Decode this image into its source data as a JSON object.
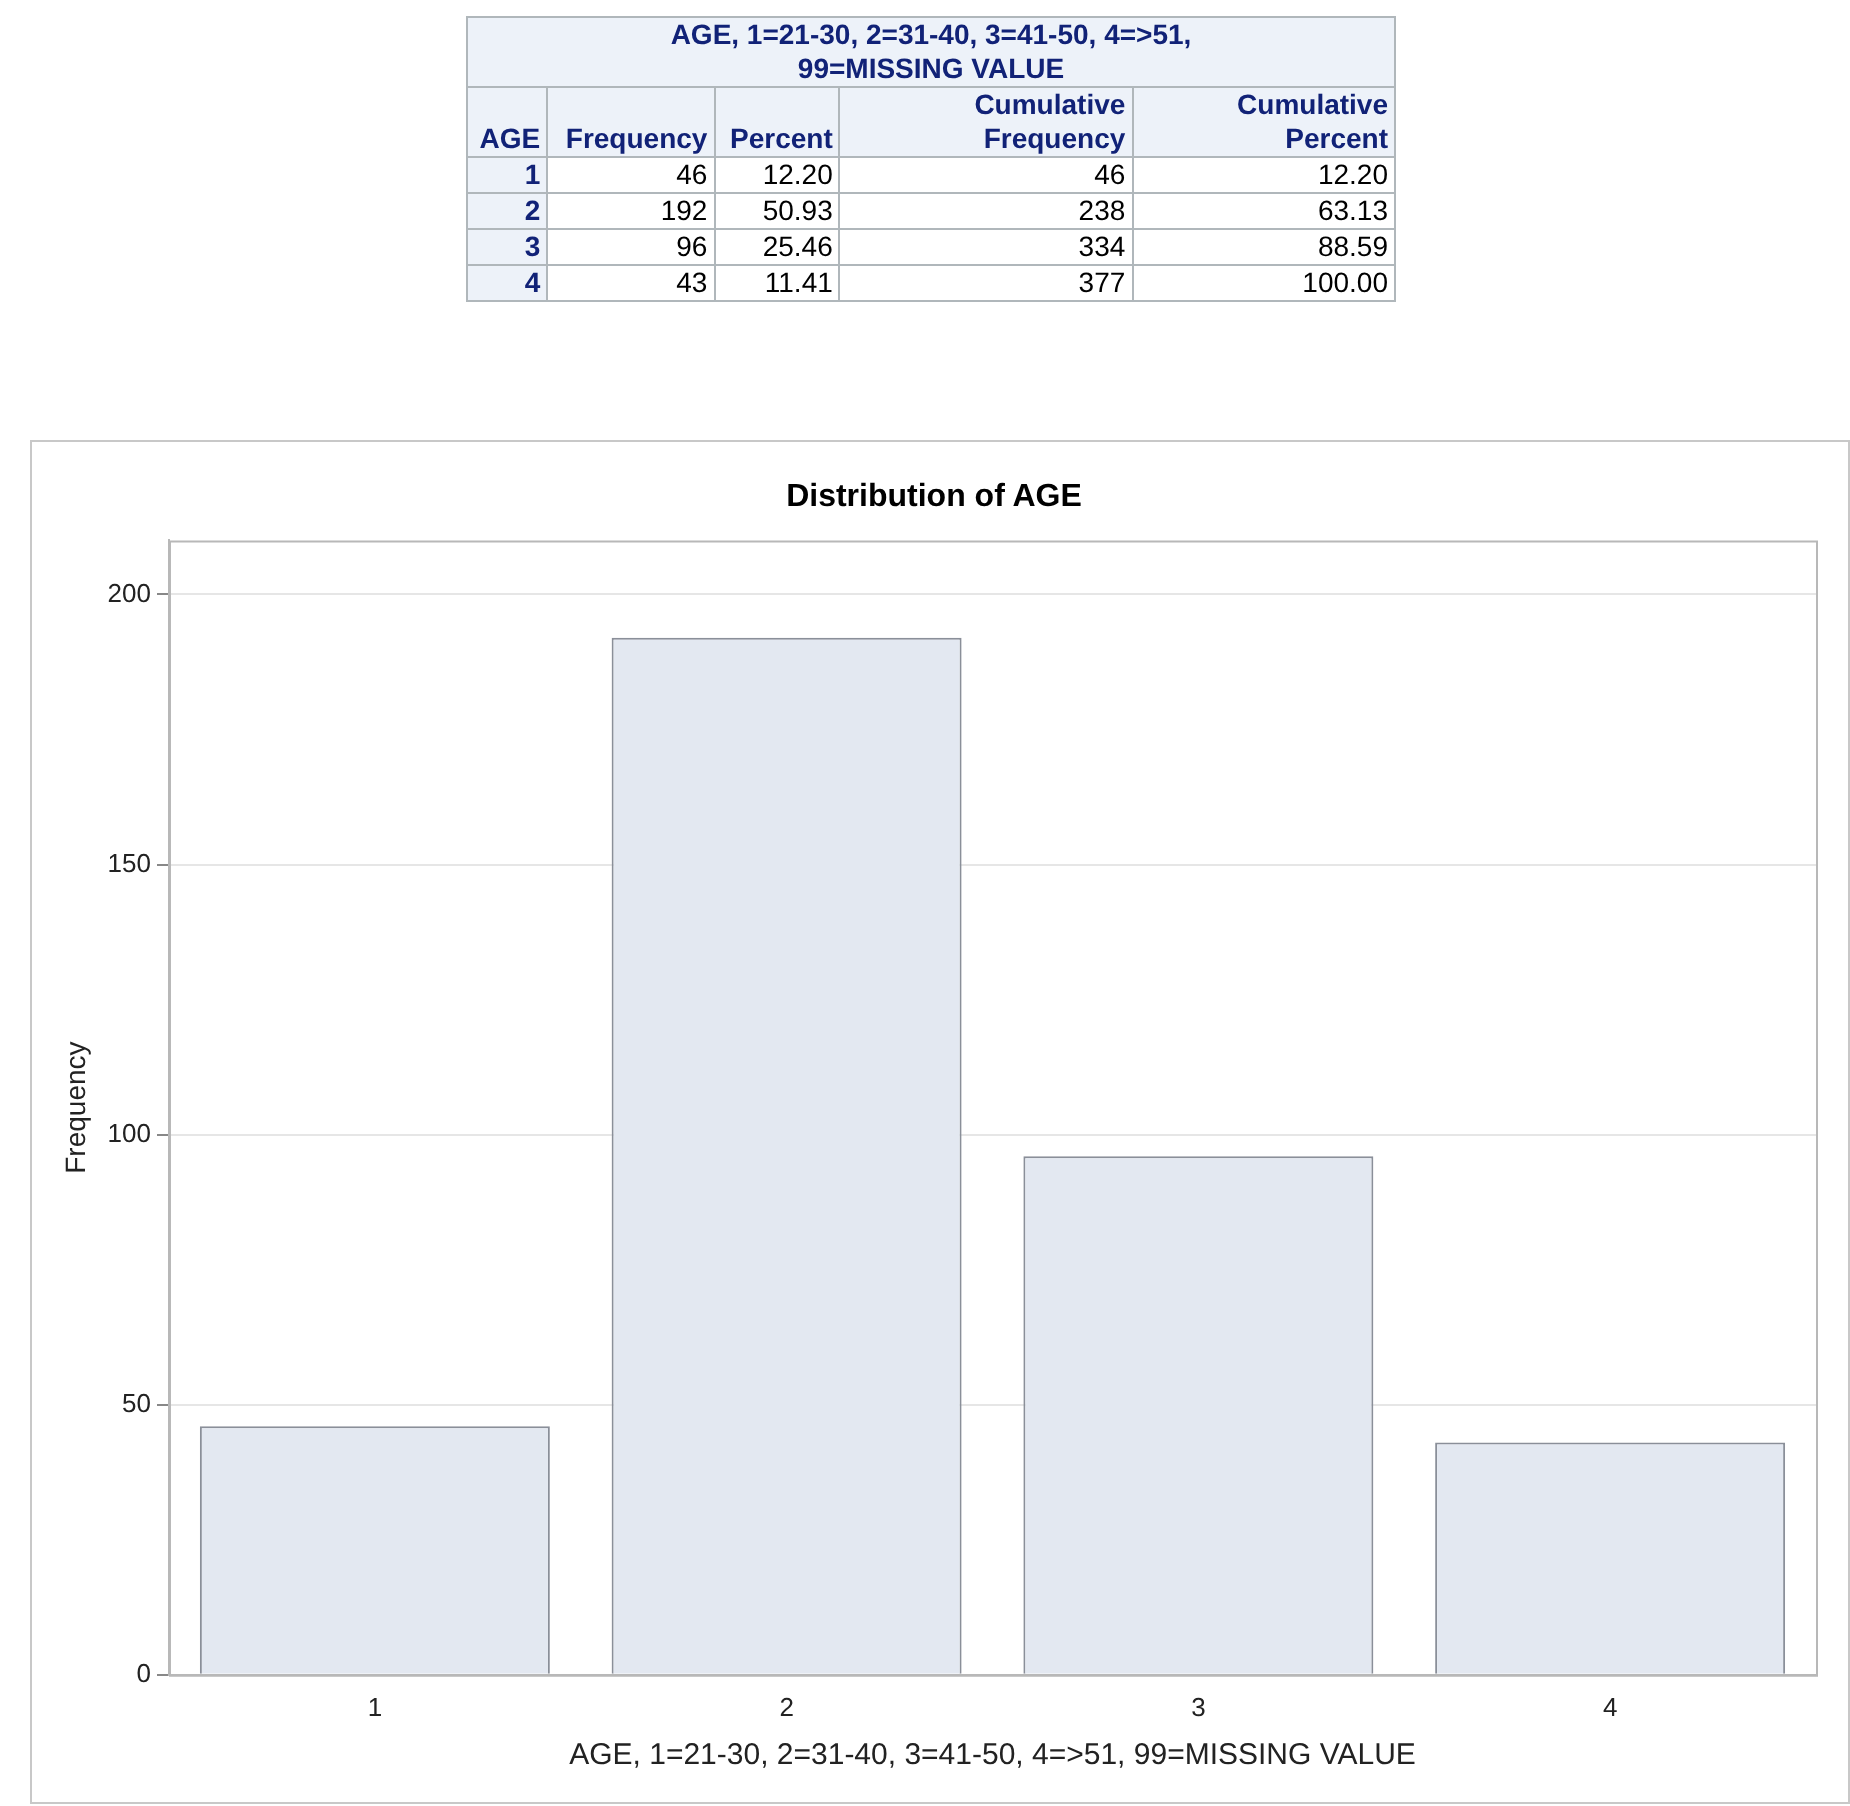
{
  "chart_data": [
    {
      "type": "heatmap",
      "title": "AGE, 1=21-30, 2=31-40, 3=41-50, 4=>51, 99=MISSING VALUE",
      "ylabel": "AGE",
      "categories": [
        "Frequency",
        "Percent",
        "Cumulative Frequency",
        "Cumulative Percent"
      ],
      "y_categories": [
        "1",
        "2",
        "3",
        "4"
      ],
      "cells": [
        [
          46,
          12.2,
          46,
          12.2
        ],
        [
          192,
          50.93,
          238,
          63.13
        ],
        [
          96,
          25.46,
          334,
          88.59
        ],
        [
          43,
          11.41,
          377,
          100
        ]
      ],
      "cell_labels": [
        [
          "46",
          "12.20",
          "46",
          "12.20"
        ],
        [
          "192",
          "50.93",
          "238",
          "63.13"
        ],
        [
          "96",
          "25.46",
          "334",
          "88.59"
        ],
        [
          "43",
          "11.41",
          "377",
          "100.00"
        ]
      ]
    },
    {
      "type": "bar",
      "title": "Distribution of AGE",
      "xlabel": "AGE, 1=21-30, 2=31-40, 3=41-50, 4=>51, 99=MISSING VALUE",
      "ylabel": "Frequency",
      "categories": [
        "1",
        "2",
        "3",
        "4"
      ],
      "values": [
        46,
        192,
        96,
        43
      ],
      "color": "#e3e8f1",
      "ylim": [
        0,
        210
      ],
      "yticks": [
        0,
        50,
        100,
        150,
        200
      ],
      "grid": "y"
    }
  ]
}
